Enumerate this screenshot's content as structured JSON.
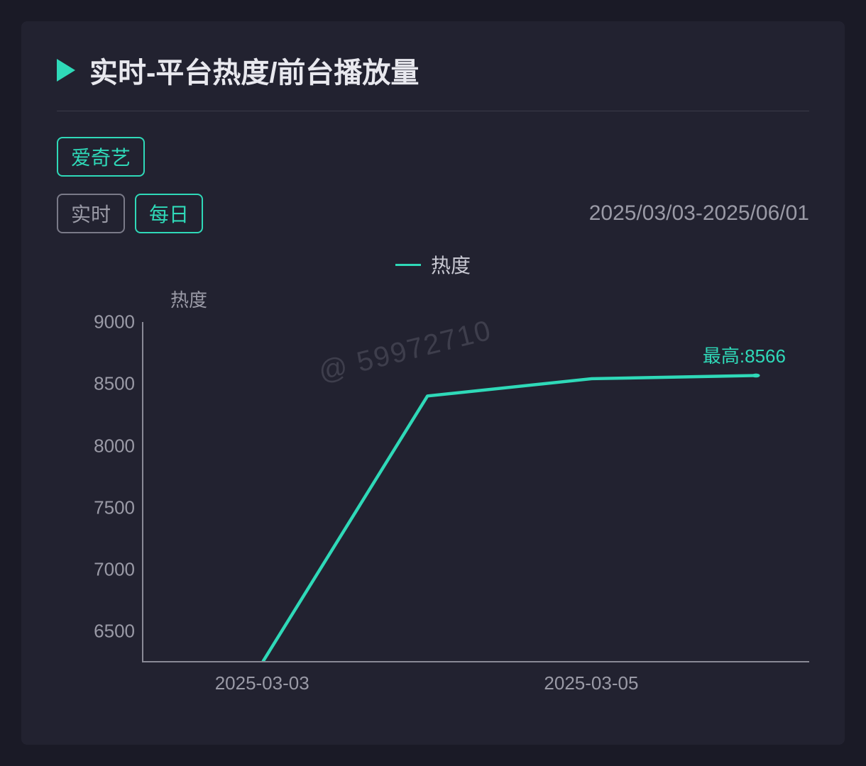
{
  "header": {
    "title": "实时-平台热度/前台播放量"
  },
  "filters": {
    "platform": {
      "label": "爱奇艺",
      "active": true
    },
    "mode": {
      "realtime": {
        "label": "实时",
        "active": false
      },
      "daily": {
        "label": "每日",
        "active": true
      }
    },
    "date_range": "2025/03/03-2025/06/01"
  },
  "legend": {
    "series_label": "热度",
    "series_color": "#2fd9b8"
  },
  "chart": {
    "type": "line",
    "y_title": "热度",
    "y_axis": {
      "min": 6250,
      "max": 9000,
      "ticks": [
        6500,
        7000,
        7500,
        8000,
        8500,
        9000
      ]
    },
    "x_axis": {
      "min_index": 0,
      "max_index": 3,
      "tick_labels": [
        {
          "label": "2025-03-03",
          "index": 0
        },
        {
          "label": "2025-03-05",
          "index": 2
        }
      ]
    },
    "series": {
      "color": "#2fd9b8",
      "line_width": 4,
      "points": [
        {
          "index": 0,
          "value": 6250
        },
        {
          "index": 1,
          "value": 8400
        },
        {
          "index": 2,
          "value": 8540
        },
        {
          "index": 3,
          "value": 8566
        }
      ]
    },
    "peak": {
      "label_prefix": "最高:",
      "value": 8566,
      "at_index": 3
    },
    "axis_color": "#8a8a96",
    "tick_label_color": "#9a9aa6",
    "background_color": "#222230",
    "tick_fontsize": 26
  },
  "watermark": "@ 59972710",
  "colors": {
    "page_bg": "#1a1a26",
    "card_bg": "#222230",
    "accent": "#2fd9b8",
    "text_primary": "#e8e8ee",
    "text_secondary": "#9a9aa6",
    "divider": "#3a3a48"
  }
}
